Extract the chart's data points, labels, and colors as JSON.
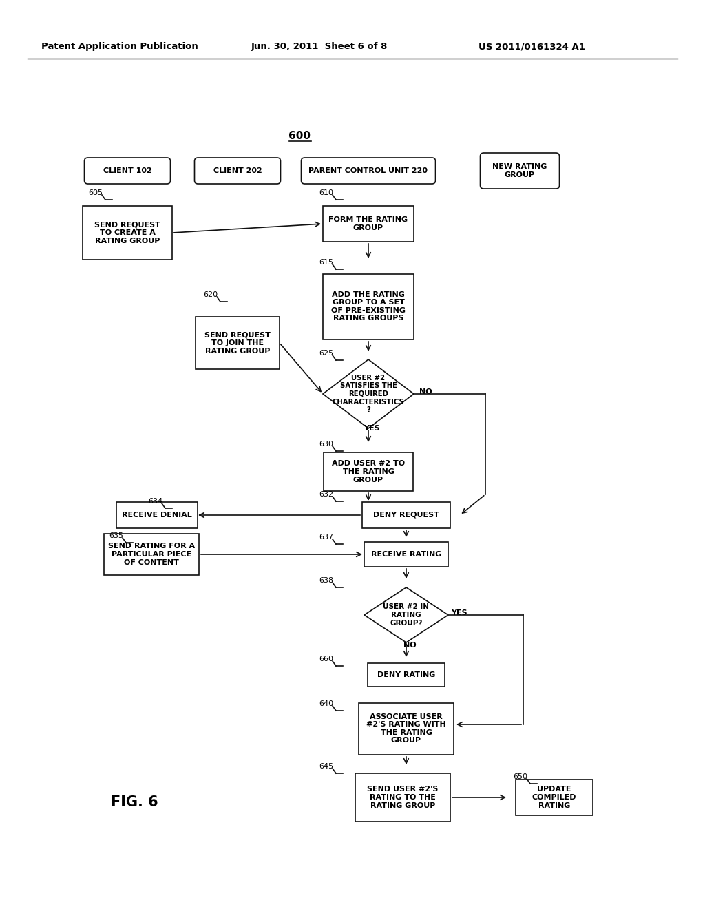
{
  "bg_color": "#ffffff",
  "header_left": "Patent Application Publication",
  "header_mid": "Jun. 30, 2011  Sheet 6 of 8",
  "header_right": "US 2011/0161324 A1",
  "figure_label": "FIG. 6",
  "diagram_title": "600"
}
